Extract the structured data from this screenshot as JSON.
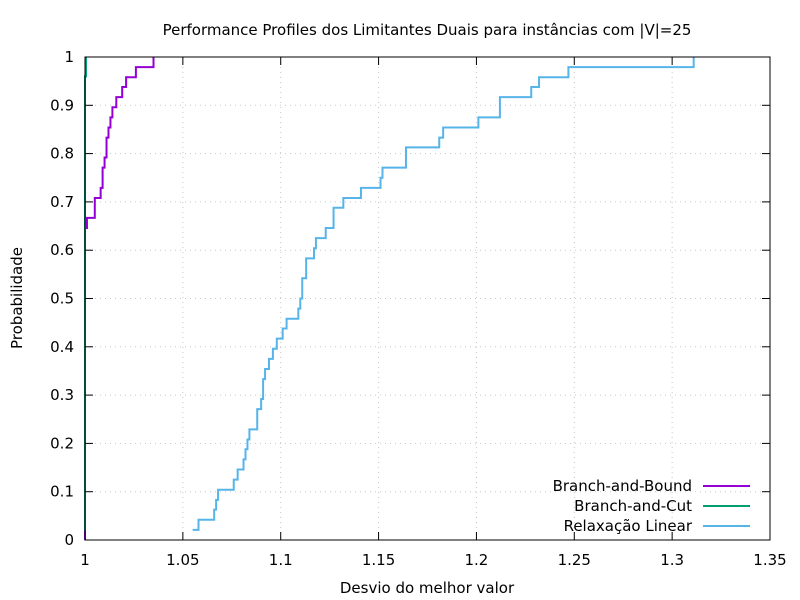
{
  "chart_data": {
    "type": "line",
    "title": "Performance Profiles dos Limitantes Duais para instâncias com |V|=25",
    "xlabel": "Desvio do melhor valor",
    "ylabel": "Probabilidade",
    "xlim": [
      1,
      1.35
    ],
    "ylim": [
      0,
      1
    ],
    "xticks": [
      "1",
      "1.05",
      "1.1",
      "1.15",
      "1.2",
      "1.25",
      "1.3",
      "1.35"
    ],
    "yticks": [
      "0",
      "0.1",
      "0.2",
      "0.3",
      "0.4",
      "0.5",
      "0.6",
      "0.7",
      "0.8",
      "0.9",
      "1"
    ],
    "grid": true,
    "legend_position": "bottom-right",
    "series": [
      {
        "name": "Branch-and-Bound",
        "color": "#9400d3",
        "x": [
          1.0,
          1.0,
          1.001,
          1.001,
          1.005,
          1.005,
          1.008,
          1.008,
          1.009,
          1.009,
          1.01,
          1.01,
          1.011,
          1.011,
          1.012,
          1.012,
          1.013,
          1.013,
          1.014,
          1.014,
          1.016,
          1.016,
          1.019,
          1.019,
          1.021,
          1.021,
          1.026,
          1.026,
          1.035,
          1.035
        ],
        "y": [
          0.0,
          0.646,
          0.646,
          0.667,
          0.667,
          0.708,
          0.708,
          0.729,
          0.729,
          0.771,
          0.771,
          0.792,
          0.792,
          0.833,
          0.833,
          0.854,
          0.854,
          0.875,
          0.875,
          0.896,
          0.896,
          0.917,
          0.917,
          0.938,
          0.938,
          0.958,
          0.958,
          0.979,
          0.979,
          1.0
        ]
      },
      {
        "name": "Branch-and-Cut",
        "color": "#009e73",
        "x": [
          1.0,
          1.0,
          1.0005,
          1.0005
        ],
        "y": [
          0.02,
          0.96,
          0.96,
          1.0
        ]
      },
      {
        "name": "Relaxação Linear",
        "color": "#56b4e9",
        "x": [
          1.055,
          1.058,
          1.058,
          1.066,
          1.066,
          1.067,
          1.067,
          1.068,
          1.068,
          1.076,
          1.076,
          1.078,
          1.078,
          1.081,
          1.081,
          1.082,
          1.082,
          1.083,
          1.083,
          1.084,
          1.084,
          1.088,
          1.088,
          1.09,
          1.09,
          1.091,
          1.091,
          1.092,
          1.092,
          1.094,
          1.094,
          1.096,
          1.096,
          1.098,
          1.098,
          1.101,
          1.101,
          1.103,
          1.103,
          1.109,
          1.109,
          1.11,
          1.11,
          1.111,
          1.111,
          1.113,
          1.113,
          1.117,
          1.117,
          1.118,
          1.118,
          1.123,
          1.123,
          1.127,
          1.127,
          1.132,
          1.132,
          1.141,
          1.141,
          1.151,
          1.151,
          1.152,
          1.152,
          1.164,
          1.164,
          1.181,
          1.181,
          1.183,
          1.183,
          1.201,
          1.201,
          1.212,
          1.212,
          1.228,
          1.228,
          1.232,
          1.232,
          1.247,
          1.247,
          1.311,
          1.311
        ],
        "y": [
          0.021,
          0.021,
          0.042,
          0.042,
          0.063,
          0.063,
          0.083,
          0.083,
          0.104,
          0.104,
          0.125,
          0.125,
          0.146,
          0.146,
          0.167,
          0.167,
          0.188,
          0.188,
          0.208,
          0.208,
          0.229,
          0.229,
          0.271,
          0.271,
          0.292,
          0.292,
          0.333,
          0.333,
          0.354,
          0.354,
          0.375,
          0.375,
          0.396,
          0.396,
          0.417,
          0.417,
          0.438,
          0.438,
          0.458,
          0.458,
          0.479,
          0.479,
          0.5,
          0.5,
          0.542,
          0.542,
          0.583,
          0.583,
          0.604,
          0.604,
          0.625,
          0.625,
          0.646,
          0.646,
          0.688,
          0.688,
          0.708,
          0.708,
          0.729,
          0.729,
          0.75,
          0.75,
          0.771,
          0.771,
          0.813,
          0.813,
          0.833,
          0.833,
          0.854,
          0.854,
          0.875,
          0.875,
          0.917,
          0.917,
          0.938,
          0.938,
          0.958,
          0.958,
          0.979,
          0.979,
          1.0
        ]
      }
    ]
  }
}
